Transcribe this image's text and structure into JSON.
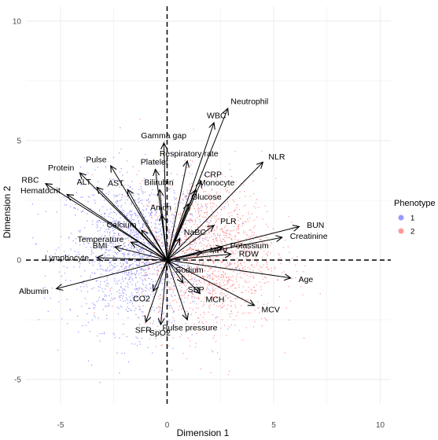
{
  "chart_data": {
    "type": "biplot",
    "xlabel": "Dimension 1",
    "ylabel": "Dimension 2",
    "xlim": [
      -6.3,
      10.2
    ],
    "ylim": [
      -6.7,
      10.3
    ],
    "x_ticks": [
      -5,
      0,
      5,
      10
    ],
    "y_ticks": [
      -5,
      0,
      5,
      10
    ],
    "grid": true,
    "reference_lines": {
      "x": 0,
      "y": 0,
      "style": "dashed"
    },
    "legend": {
      "title": "Phenotype",
      "placement": "right",
      "entries": [
        {
          "label": "1",
          "color": "#9999ff"
        },
        {
          "label": "2",
          "color": "#ff9999"
        }
      ]
    },
    "point_clouds": [
      {
        "group": "1",
        "color": "#5a5aff",
        "n": 1500,
        "center": [
          -1.5,
          0.3
        ],
        "spread": [
          1.6,
          1.6
        ]
      },
      {
        "group": "2",
        "color": "#ff5a5a",
        "n": 1500,
        "center": [
          1.9,
          0.2
        ],
        "spread": [
          1.6,
          1.6
        ]
      }
    ],
    "vectors": [
      {
        "name": "Neutrophil",
        "x": 2.85,
        "y": 6.35
      },
      {
        "name": "WBC",
        "x": 2.2,
        "y": 5.75
      },
      {
        "name": "Gamma gap",
        "x": -0.15,
        "y": 4.9
      },
      {
        "name": "Respiratory rate",
        "x": 0.95,
        "y": 4.15
      },
      {
        "name": "NLR",
        "x": 4.5,
        "y": 4.1
      },
      {
        "name": "CRP",
        "x": 1.6,
        "y": 3.3
      },
      {
        "name": "Monocyte",
        "x": 1.35,
        "y": 2.95
      },
      {
        "name": "Glucose",
        "x": 1.0,
        "y": 2.35
      },
      {
        "name": "Platelet",
        "x": -0.55,
        "y": 3.8
      },
      {
        "name": "Bilirubin",
        "x": -0.35,
        "y": 2.95
      },
      {
        "name": "Pulse",
        "x": -2.65,
        "y": 3.95
      },
      {
        "name": "ALT",
        "x": -3.3,
        "y": 3.05
      },
      {
        "name": "AST",
        "x": -1.85,
        "y": 2.95
      },
      {
        "name": "Protein",
        "x": -4.1,
        "y": 3.65
      },
      {
        "name": "RBC",
        "x": -5.7,
        "y": 3.2
      },
      {
        "name": "Hematocrit",
        "x": -4.7,
        "y": 2.75
      },
      {
        "name": "Anion",
        "x": -0.25,
        "y": 1.9
      },
      {
        "name": "Calcium",
        "x": -1.2,
        "y": 1.25
      },
      {
        "name": "Temperature",
        "x": -1.7,
        "y": 0.75
      },
      {
        "name": "BMI",
        "x": -2.45,
        "y": 0.55
      },
      {
        "name": "Lymphocyte",
        "x": -3.3,
        "y": 0.1
      },
      {
        "name": "Albumin",
        "x": -5.2,
        "y": -1.2
      },
      {
        "name": "NaBC",
        "x": 0.6,
        "y": 0.9
      },
      {
        "name": "PLR",
        "x": 2.2,
        "y": 1.45
      },
      {
        "name": "Potassium",
        "x": 2.6,
        "y": 0.55
      },
      {
        "name": "Creatinine",
        "x": 5.4,
        "y": 0.95
      },
      {
        "name": "BUN",
        "x": 6.2,
        "y": 1.4
      },
      {
        "name": "MPV",
        "x": 1.65,
        "y": 0.35
      },
      {
        "name": "RDW",
        "x": 3.0,
        "y": 0.25
      },
      {
        "name": "Age",
        "x": 5.8,
        "y": -0.75
      },
      {
        "name": "Sodium",
        "x": 0.15,
        "y": -0.15
      },
      {
        "name": "SBP",
        "x": 0.75,
        "y": -0.95
      },
      {
        "name": "MCH",
        "x": 1.55,
        "y": -1.4
      },
      {
        "name": "MCV",
        "x": 4.1,
        "y": -1.9
      },
      {
        "name": "Pulse pressure",
        "x": 0.95,
        "y": -2.5
      },
      {
        "name": "CO2",
        "x": -0.65,
        "y": -1.3
      },
      {
        "name": "SFR",
        "x": -1.0,
        "y": -2.6
      },
      {
        "name": "SpO2",
        "x": -0.3,
        "y": -2.7
      }
    ]
  }
}
